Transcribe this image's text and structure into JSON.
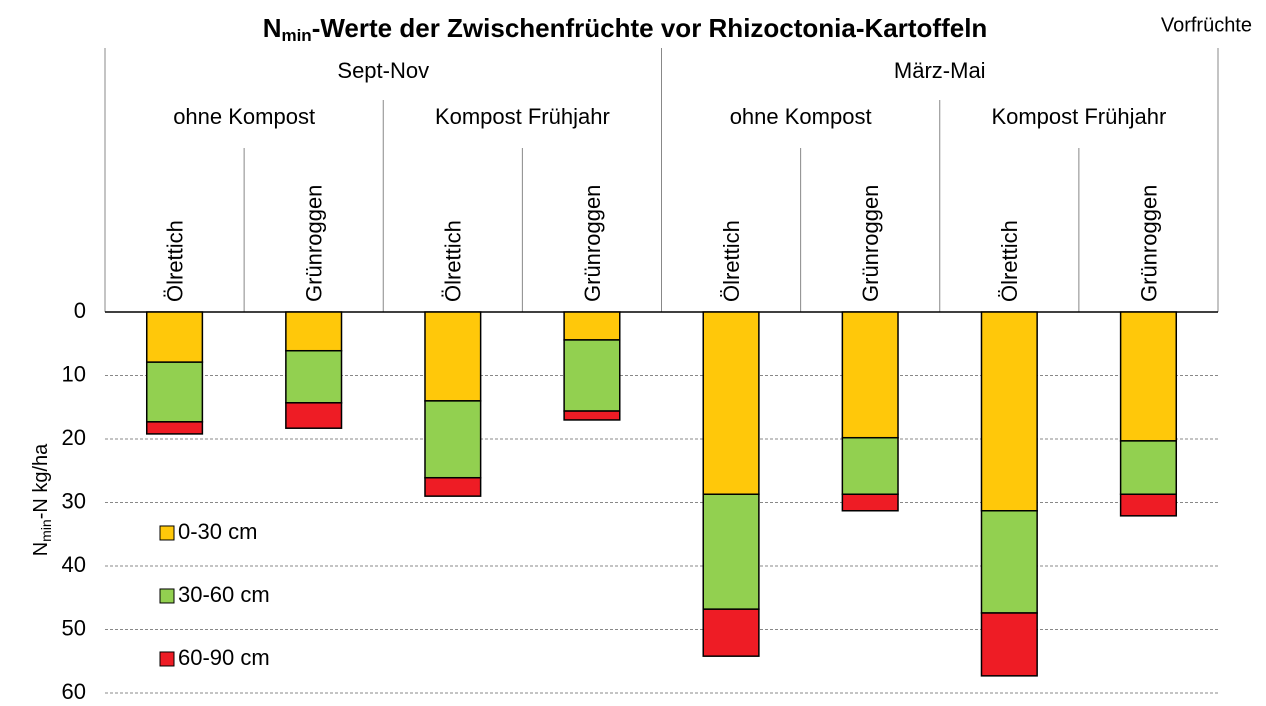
{
  "chart_data": {
    "type": "bar",
    "stacked": true,
    "y_inverted": true,
    "title": {
      "text": "N",
      "subscript": "min",
      "rest": "-Werte der Zwischenfrüchte vor Rhizoctonia-Kartoffeln"
    },
    "header_label": "Vorfrüchte",
    "y_label": {
      "text": "N",
      "subscript": "min",
      "rest": "-N kg/ha"
    },
    "groups": [
      "Sept-Nov",
      "März-Mai"
    ],
    "subgroups": [
      "ohne Kompost",
      "Kompost Frühjahr",
      "ohne Kompost",
      "Kompost Frühjahr"
    ],
    "categories": [
      "Ölrettich",
      "Grünroggen",
      "Ölrettich",
      "Grünroggen",
      "Ölrettich",
      "Grünroggen",
      "Ölrettich",
      "Grünroggen"
    ],
    "series": [
      {
        "name": "0-30 cm",
        "color": "#ffc80a",
        "values": [
          7.9,
          6.1,
          14.0,
          4.4,
          28.7,
          19.8,
          31.3,
          20.3
        ]
      },
      {
        "name": "30-60 cm",
        "color": "#92d050",
        "values": [
          9.4,
          8.2,
          12.1,
          11.2,
          18.1,
          8.9,
          16.1,
          8.4
        ]
      },
      {
        "name": "60-90 cm",
        "color": "#ee1c25",
        "values": [
          1.9,
          4.0,
          2.9,
          1.4,
          7.4,
          2.6,
          9.9,
          3.4
        ]
      }
    ],
    "ylim": [
      0,
      60
    ],
    "yticks": [
      0,
      10,
      20,
      30,
      40,
      50,
      60
    ],
    "grid": true,
    "legend": "lower left"
  }
}
